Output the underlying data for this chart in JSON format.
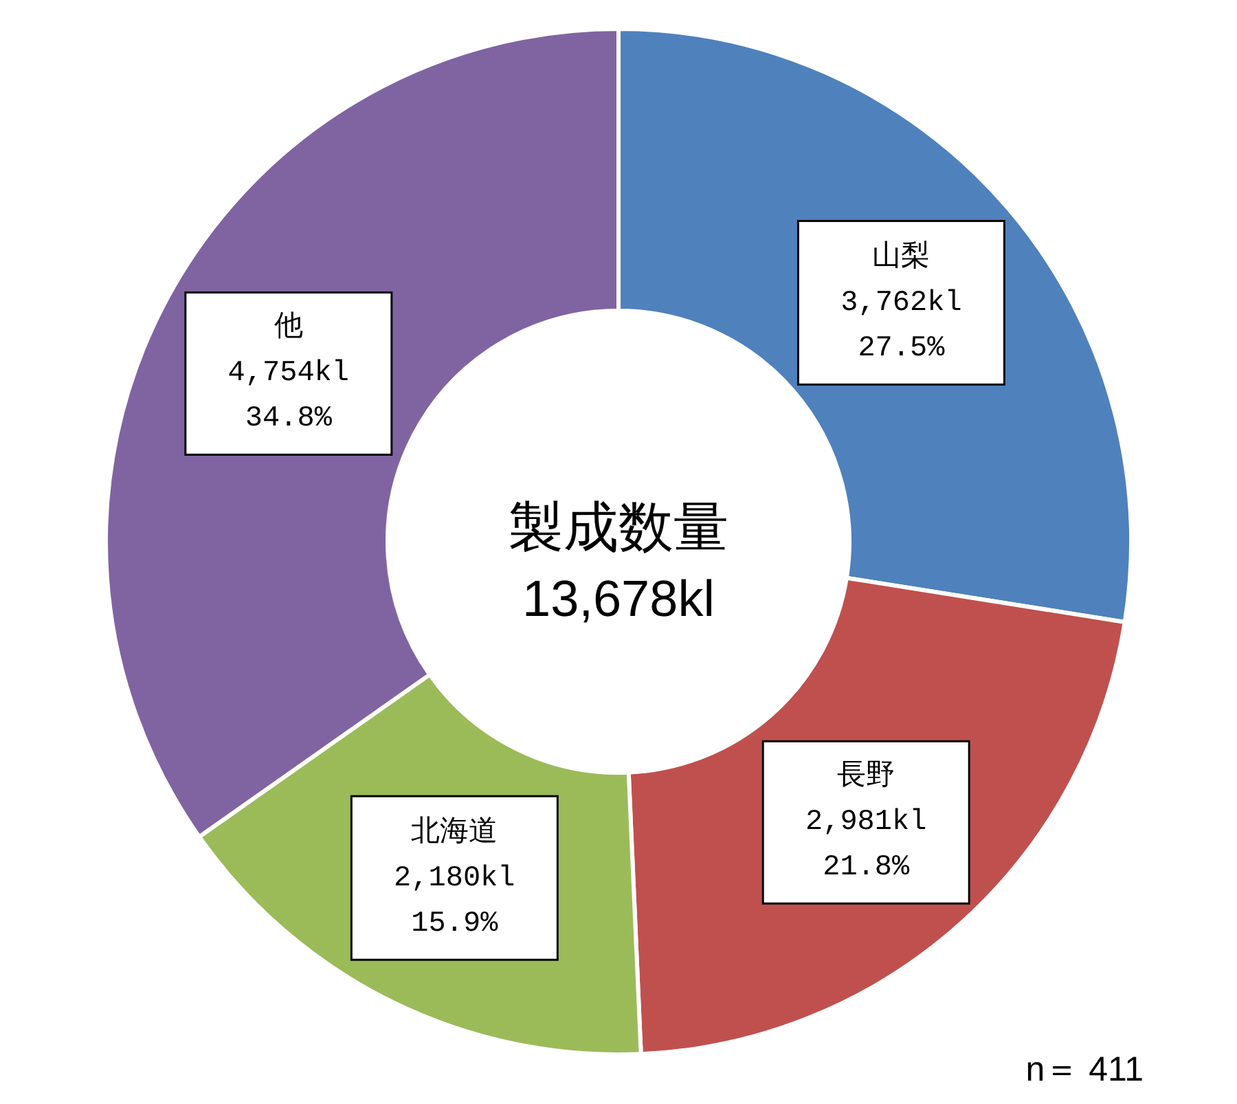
{
  "chart_data": {
    "type": "donut",
    "title": "製成数量",
    "subtitle": "13,678kl",
    "categories": [
      "山梨",
      "長野",
      "北海道",
      "他"
    ],
    "values": [
      3762,
      2981,
      2180,
      4754
    ],
    "colors": [
      "#4f81bd",
      "#c0504d",
      "#9bbb59",
      "#8064a2"
    ],
    "value_labels": [
      "3,762kl\n27.5%",
      "2,981kl\n21.8%",
      "2,180kl\n15.9%",
      "4,754kl\n34.8%"
    ],
    "annotations": [
      "n＝ 411"
    ]
  }
}
